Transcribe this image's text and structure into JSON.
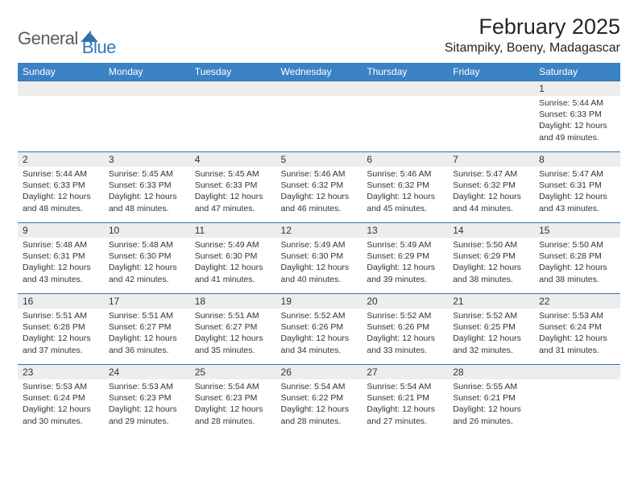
{
  "brand": {
    "general": "General",
    "blue": "Blue"
  },
  "title": "February 2025",
  "location": "Sitampiky, Boeny, Madagascar",
  "colors": {
    "header_bg": "#3a82c4",
    "header_text": "#ffffff",
    "row_border": "#3a6fa0",
    "daynum_bg": "#ededed",
    "body_text": "#333333",
    "brand_gray": "#5a5a5a",
    "brand_blue": "#3478b8",
    "page_bg": "#ffffff"
  },
  "dow": [
    "Sunday",
    "Monday",
    "Tuesday",
    "Wednesday",
    "Thursday",
    "Friday",
    "Saturday"
  ],
  "weeks": [
    [
      null,
      null,
      null,
      null,
      null,
      null,
      {
        "n": "1",
        "sr": "5:44 AM",
        "ss": "6:33 PM",
        "dl": "12 hours and 49 minutes."
      }
    ],
    [
      {
        "n": "2",
        "sr": "5:44 AM",
        "ss": "6:33 PM",
        "dl": "12 hours and 48 minutes."
      },
      {
        "n": "3",
        "sr": "5:45 AM",
        "ss": "6:33 PM",
        "dl": "12 hours and 48 minutes."
      },
      {
        "n": "4",
        "sr": "5:45 AM",
        "ss": "6:33 PM",
        "dl": "12 hours and 47 minutes."
      },
      {
        "n": "5",
        "sr": "5:46 AM",
        "ss": "6:32 PM",
        "dl": "12 hours and 46 minutes."
      },
      {
        "n": "6",
        "sr": "5:46 AM",
        "ss": "6:32 PM",
        "dl": "12 hours and 45 minutes."
      },
      {
        "n": "7",
        "sr": "5:47 AM",
        "ss": "6:32 PM",
        "dl": "12 hours and 44 minutes."
      },
      {
        "n": "8",
        "sr": "5:47 AM",
        "ss": "6:31 PM",
        "dl": "12 hours and 43 minutes."
      }
    ],
    [
      {
        "n": "9",
        "sr": "5:48 AM",
        "ss": "6:31 PM",
        "dl": "12 hours and 43 minutes."
      },
      {
        "n": "10",
        "sr": "5:48 AM",
        "ss": "6:30 PM",
        "dl": "12 hours and 42 minutes."
      },
      {
        "n": "11",
        "sr": "5:49 AM",
        "ss": "6:30 PM",
        "dl": "12 hours and 41 minutes."
      },
      {
        "n": "12",
        "sr": "5:49 AM",
        "ss": "6:30 PM",
        "dl": "12 hours and 40 minutes."
      },
      {
        "n": "13",
        "sr": "5:49 AM",
        "ss": "6:29 PM",
        "dl": "12 hours and 39 minutes."
      },
      {
        "n": "14",
        "sr": "5:50 AM",
        "ss": "6:29 PM",
        "dl": "12 hours and 38 minutes."
      },
      {
        "n": "15",
        "sr": "5:50 AM",
        "ss": "6:28 PM",
        "dl": "12 hours and 38 minutes."
      }
    ],
    [
      {
        "n": "16",
        "sr": "5:51 AM",
        "ss": "6:28 PM",
        "dl": "12 hours and 37 minutes."
      },
      {
        "n": "17",
        "sr": "5:51 AM",
        "ss": "6:27 PM",
        "dl": "12 hours and 36 minutes."
      },
      {
        "n": "18",
        "sr": "5:51 AM",
        "ss": "6:27 PM",
        "dl": "12 hours and 35 minutes."
      },
      {
        "n": "19",
        "sr": "5:52 AM",
        "ss": "6:26 PM",
        "dl": "12 hours and 34 minutes."
      },
      {
        "n": "20",
        "sr": "5:52 AM",
        "ss": "6:26 PM",
        "dl": "12 hours and 33 minutes."
      },
      {
        "n": "21",
        "sr": "5:52 AM",
        "ss": "6:25 PM",
        "dl": "12 hours and 32 minutes."
      },
      {
        "n": "22",
        "sr": "5:53 AM",
        "ss": "6:24 PM",
        "dl": "12 hours and 31 minutes."
      }
    ],
    [
      {
        "n": "23",
        "sr": "5:53 AM",
        "ss": "6:24 PM",
        "dl": "12 hours and 30 minutes."
      },
      {
        "n": "24",
        "sr": "5:53 AM",
        "ss": "6:23 PM",
        "dl": "12 hours and 29 minutes."
      },
      {
        "n": "25",
        "sr": "5:54 AM",
        "ss": "6:23 PM",
        "dl": "12 hours and 28 minutes."
      },
      {
        "n": "26",
        "sr": "5:54 AM",
        "ss": "6:22 PM",
        "dl": "12 hours and 28 minutes."
      },
      {
        "n": "27",
        "sr": "5:54 AM",
        "ss": "6:21 PM",
        "dl": "12 hours and 27 minutes."
      },
      {
        "n": "28",
        "sr": "5:55 AM",
        "ss": "6:21 PM",
        "dl": "12 hours and 26 minutes."
      },
      null
    ]
  ],
  "labels": {
    "sunrise": "Sunrise:",
    "sunset": "Sunset:",
    "daylight": "Daylight:"
  }
}
